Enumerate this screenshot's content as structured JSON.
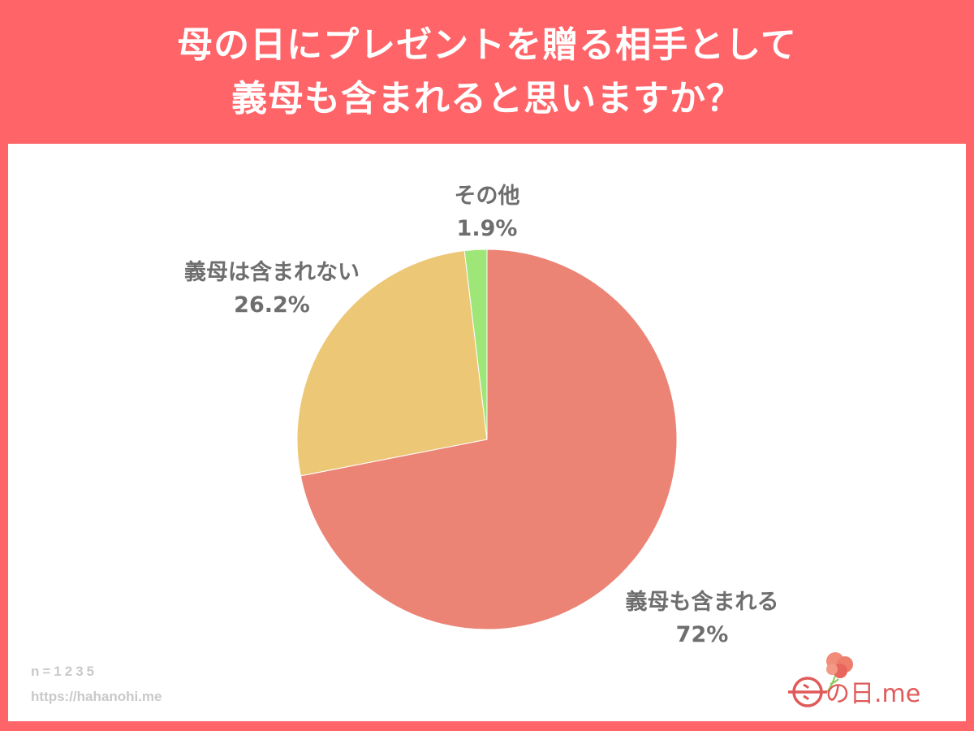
{
  "header": {
    "title_line1": "母の日にプレゼントを贈る相手として",
    "title_line2": "義母も含まれると思いますか？"
  },
  "labels": {
    "included": {
      "name": "義母も含まれる",
      "value": "72%"
    },
    "not_included": {
      "name": "義母は含まれない",
      "value": "26.2%"
    },
    "other": {
      "name": "その他",
      "value": "1.9%"
    }
  },
  "footer": {
    "sample_size": "n=1235",
    "url": "https://hahanohi.me"
  },
  "logo": {
    "text": "の日.me"
  },
  "colors": {
    "frame": "#FF6468",
    "included": "#EC8476",
    "not_included": "#ECC776",
    "other": "#9EE678",
    "label_text": "#6E6E6E"
  },
  "chart_data": {
    "type": "pie",
    "title": "母の日にプレゼントを贈る相手として義母も含まれると思いますか？",
    "categories": [
      "義母も含まれる",
      "義母は含まれない",
      "その他"
    ],
    "values": [
      72,
      26.2,
      1.9
    ],
    "unit": "%",
    "colors": [
      "#EC8476",
      "#ECC776",
      "#9EE678"
    ],
    "start_angle": "12 o'clock, clockwise",
    "annotations": [
      "n=1235",
      "https://hahanohi.me"
    ],
    "legend": "none (direct labels)"
  }
}
